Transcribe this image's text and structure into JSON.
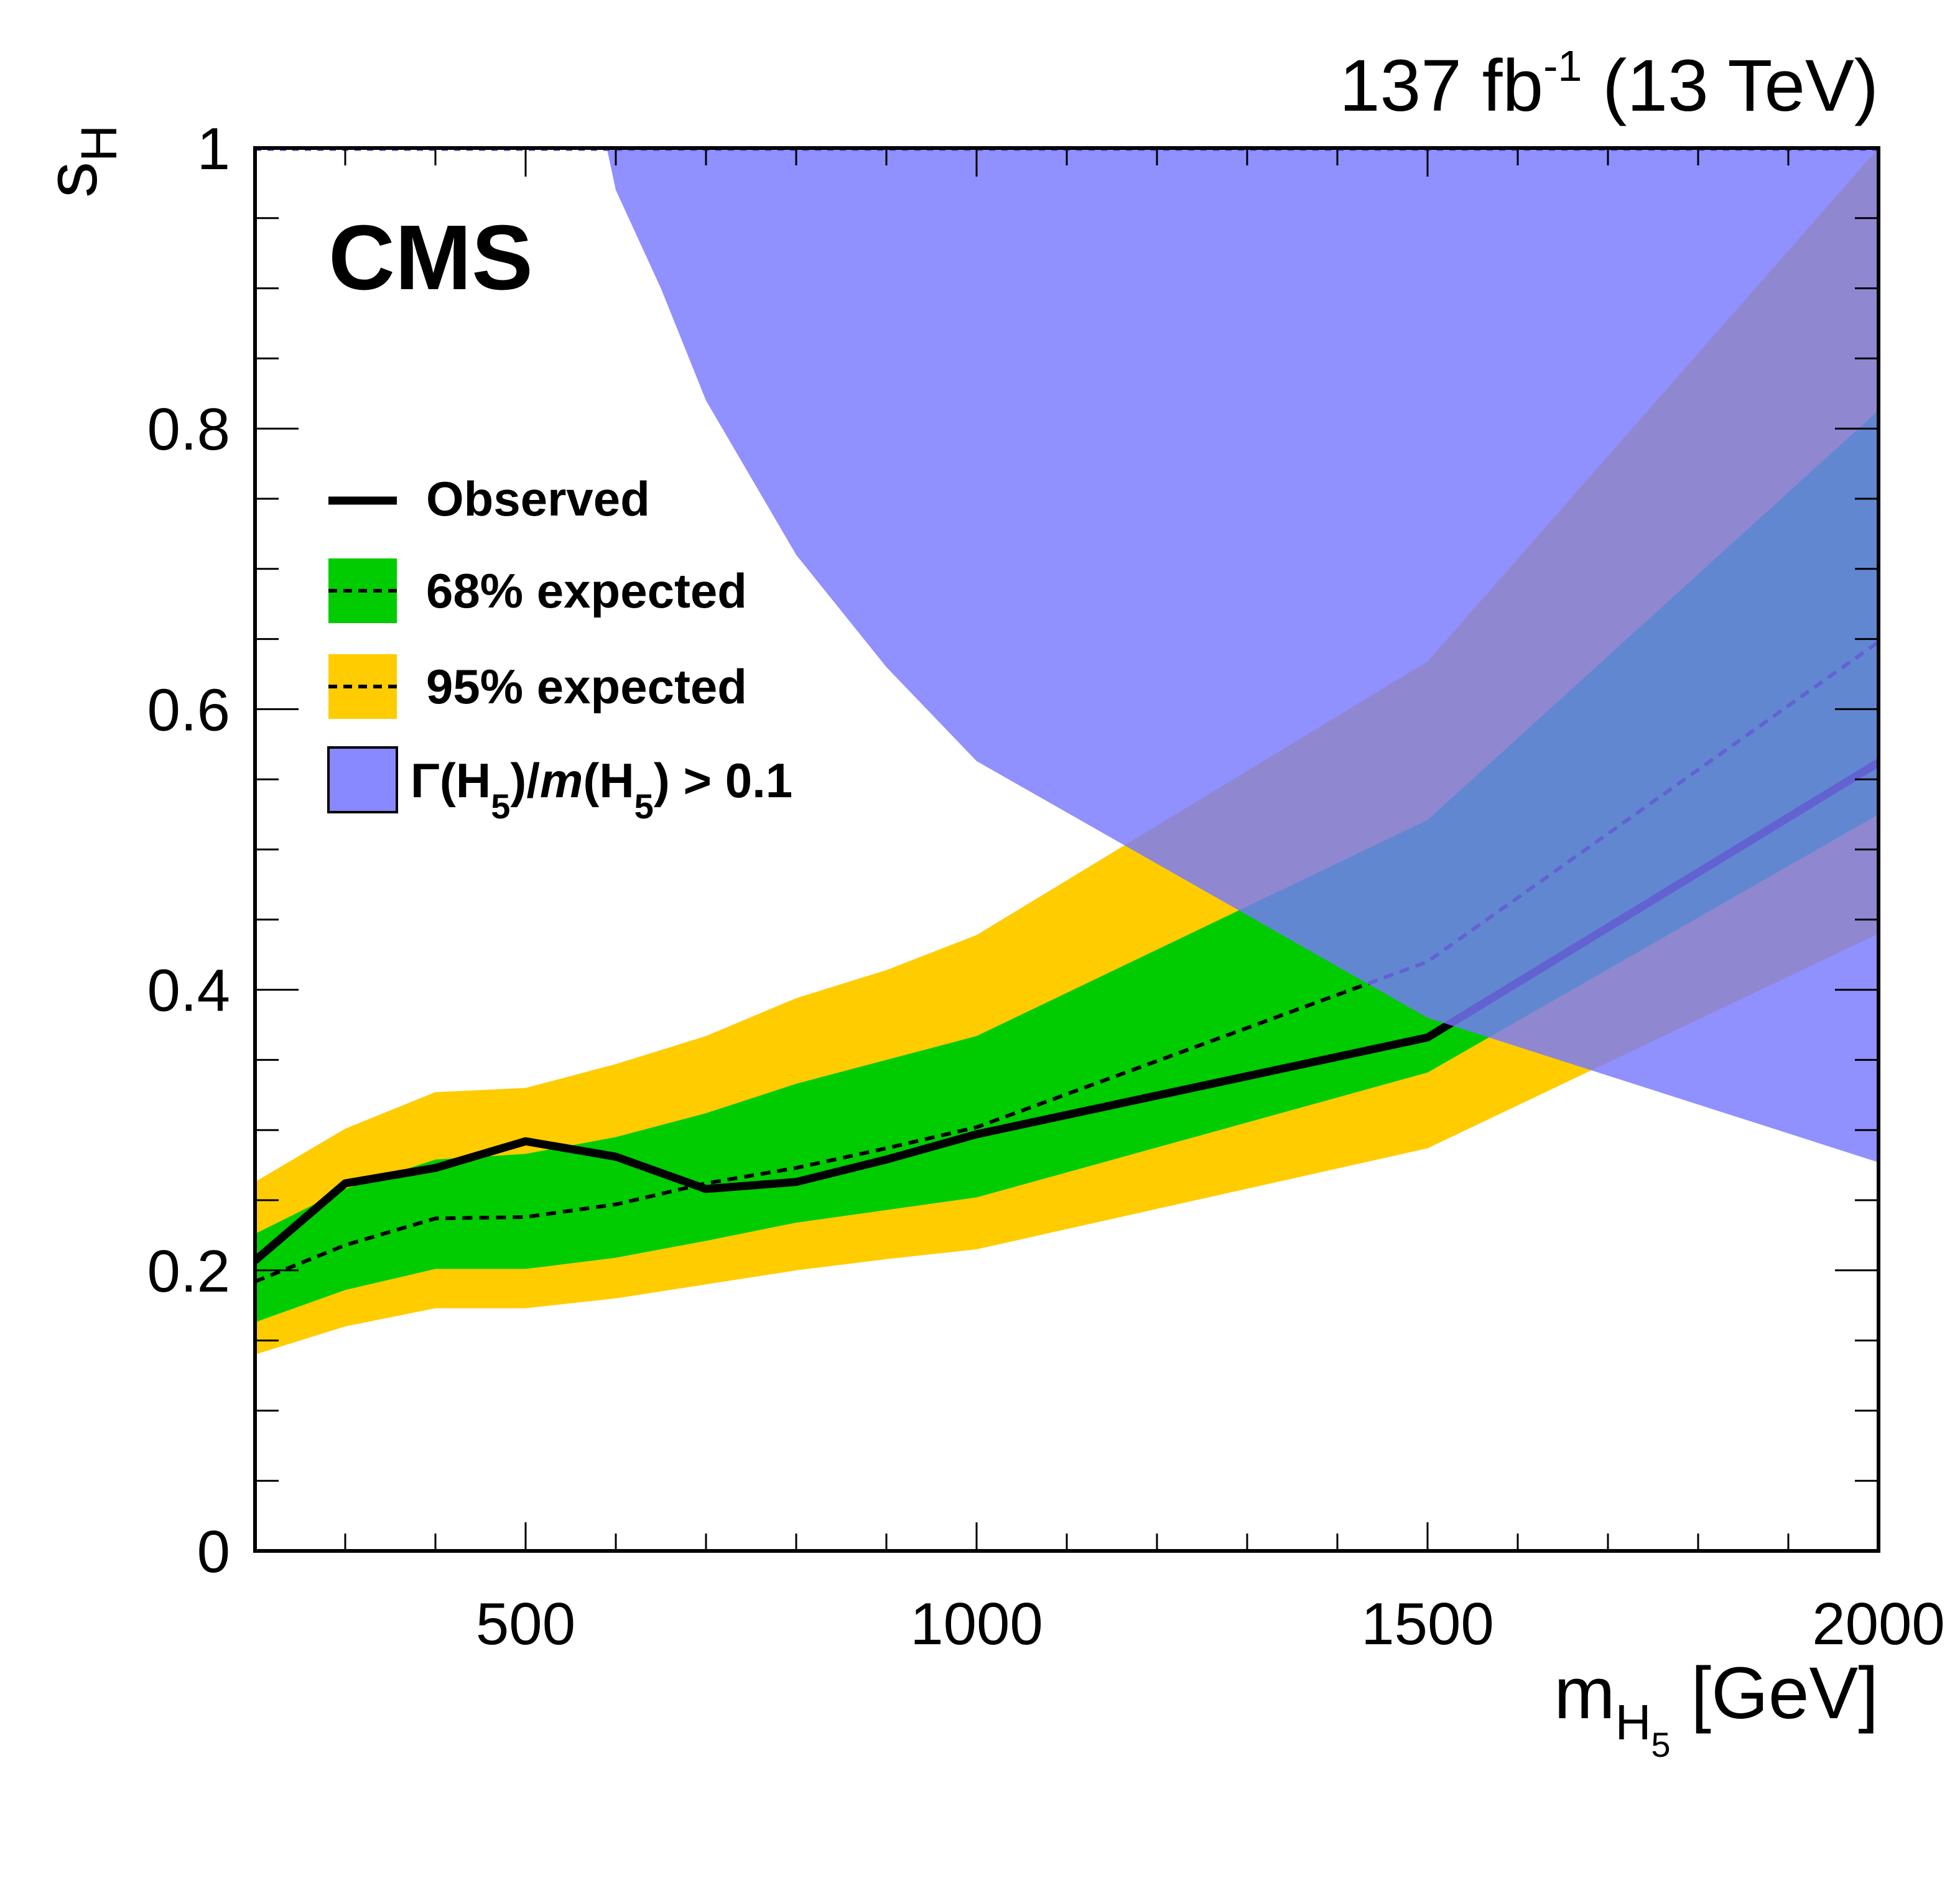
{
  "chart_data": {
    "type": "area",
    "experiment": "CMS",
    "lumi_label": {
      "value": "137 fb",
      "exponent": "-1",
      "energy": "(13 TeV)"
    },
    "xlabel": {
      "base": "m",
      "sub": "H",
      "subsub": "5",
      "unit": "[GeV]"
    },
    "ylabel": {
      "base": "s",
      "sub": "H"
    },
    "xlim": [
      200,
      2000
    ],
    "ylim": [
      0,
      1
    ],
    "x_ticks": [
      {
        "value": 500,
        "label": "500"
      },
      {
        "value": 1000,
        "label": "1000"
      },
      {
        "value": 1500,
        "label": "1500"
      },
      {
        "value": 2000,
        "label": "2000"
      }
    ],
    "y_ticks": [
      {
        "value": 0,
        "label": "0"
      },
      {
        "value": 0.2,
        "label": "0.2"
      },
      {
        "value": 0.4,
        "label": "0.4"
      },
      {
        "value": 0.6,
        "label": "0.6"
      },
      {
        "value": 0.8,
        "label": "0.8"
      },
      {
        "value": 1,
        "label": "1"
      }
    ],
    "x": [
      200,
      300,
      400,
      500,
      600,
      700,
      800,
      900,
      1000,
      1500,
      2000
    ],
    "series": [
      {
        "name": "Observed",
        "style": "solid",
        "color": "#000000",
        "values": [
          0.207,
          0.262,
          0.273,
          0.292,
          0.281,
          0.258,
          0.263,
          0.279,
          0.297,
          0.366,
          0.562
        ]
      },
      {
        "name": "68% expected",
        "role": "expected-median",
        "style": "dashed",
        "color": "#000000",
        "values": [
          0.192,
          0.218,
          0.237,
          0.238,
          0.247,
          0.262,
          0.273,
          0.287,
          0.302,
          0.42,
          0.648
        ]
      }
    ],
    "bands": [
      {
        "name": "95% expected",
        "color": "#ffcc00",
        "lower": [
          0.14,
          0.16,
          0.173,
          0.173,
          0.18,
          0.19,
          0.2,
          0.208,
          0.215,
          0.287,
          0.44
        ],
        "upper": [
          0.263,
          0.301,
          0.327,
          0.33,
          0.347,
          0.367,
          0.394,
          0.414,
          0.439,
          0.634,
          1.0
        ]
      },
      {
        "name": "68% expected",
        "color": "#00cc00",
        "lower": [
          0.163,
          0.186,
          0.201,
          0.201,
          0.209,
          0.221,
          0.234,
          0.243,
          0.252,
          0.341,
          0.525
        ],
        "upper": [
          0.226,
          0.258,
          0.279,
          0.283,
          0.295,
          0.312,
          0.333,
          0.35,
          0.367,
          0.521,
          0.813
        ]
      }
    ],
    "excluded_region": {
      "name": "Γ(H5)/m(H5) > 0.1",
      "color": "#7777ff",
      "opacity": 0.82,
      "boundary_x": [
        590,
        600,
        650,
        700,
        800,
        900,
        1000,
        1500,
        2000
      ],
      "boundary_y": [
        1.0,
        0.97,
        0.9,
        0.82,
        0.71,
        0.63,
        0.563,
        0.38,
        0.277
      ]
    },
    "legend": {
      "position": "top-left",
      "entries": [
        {
          "label": "Observed",
          "symbol": "solid-line"
        },
        {
          "label": "68% expected",
          "symbol": "green-box-dashed"
        },
        {
          "label": "95% expected",
          "symbol": "yellow-box-dashed"
        },
        {
          "label_parts": [
            "Γ(H",
            "5",
            ")/",
            "m",
            "(H",
            "5",
            ") > 0.1"
          ],
          "symbol": "blue-box"
        }
      ]
    },
    "grid": false
  }
}
